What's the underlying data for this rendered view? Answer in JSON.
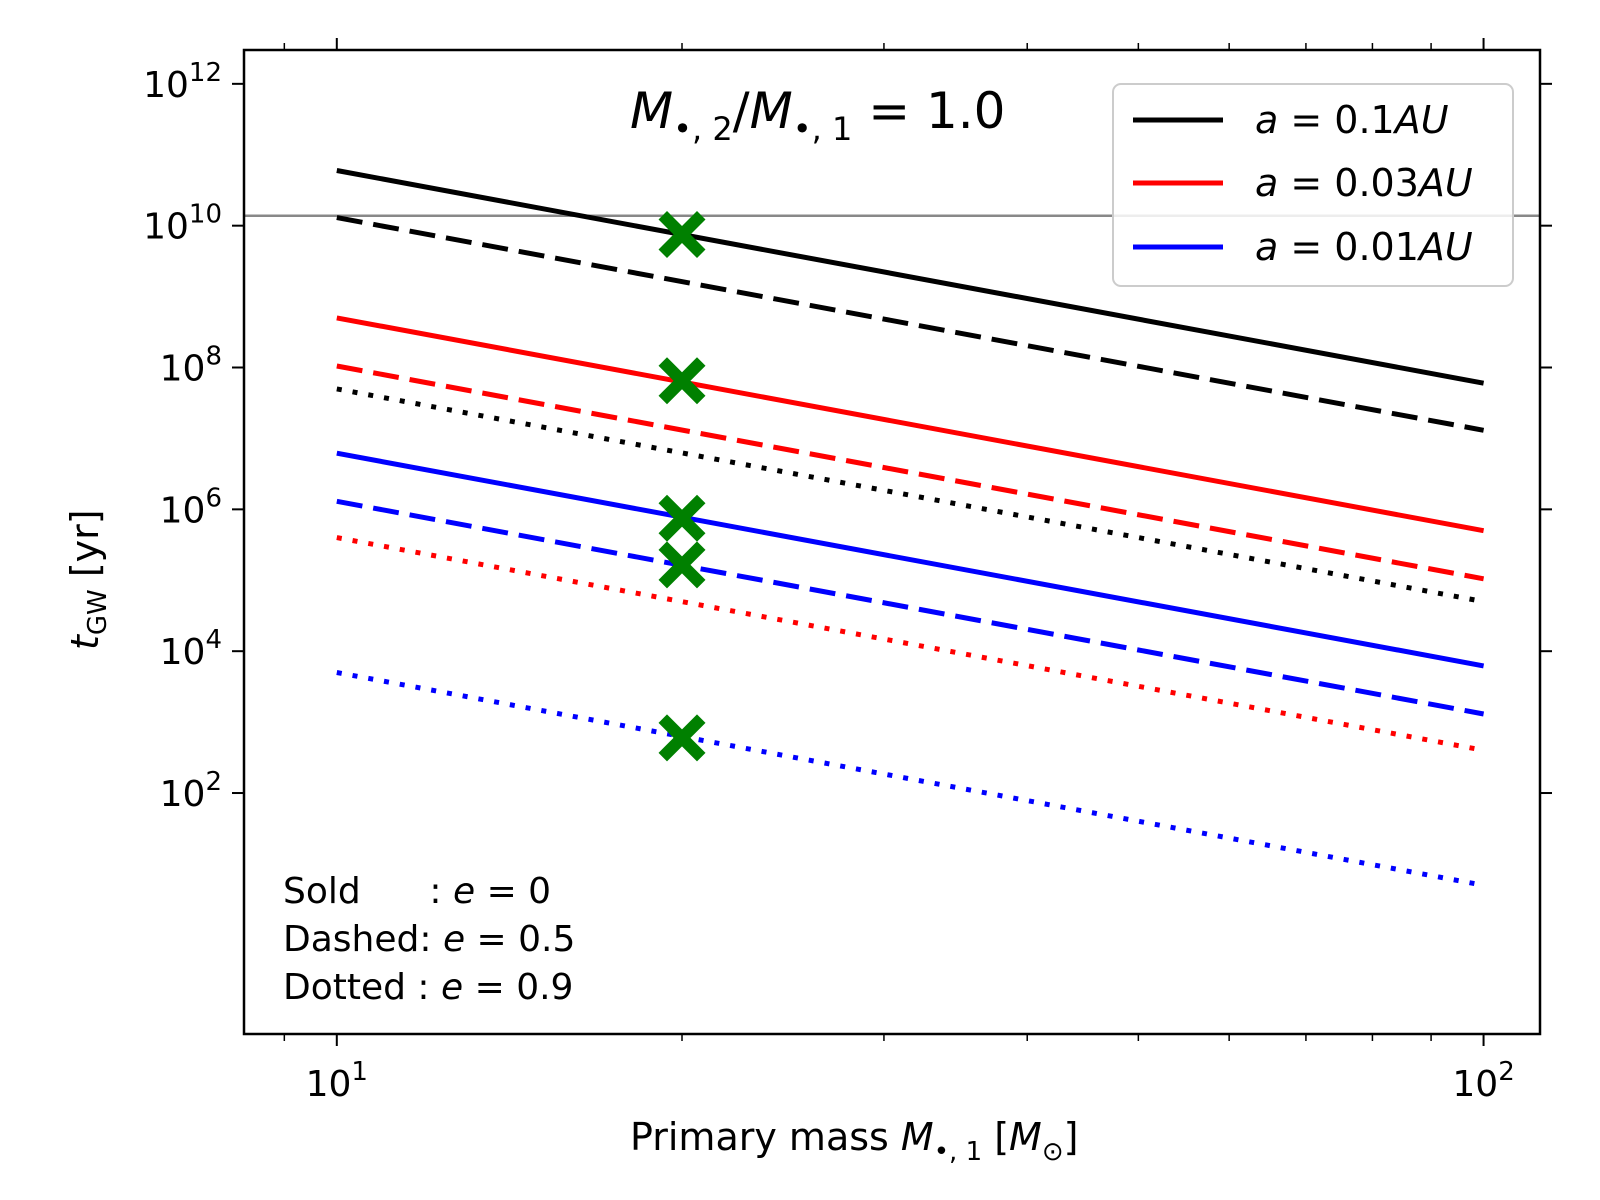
{
  "chart_data": {
    "type": "line",
    "title": {
      "prefix": "M",
      "sub1": "•, 2",
      "slash": "/",
      "prefix2": "M",
      "sub2": "•, 1",
      "suffix": " = 1.0"
    },
    "xlabel": {
      "text": "Primary mass ",
      "sym": "M",
      "sub": "•, 1",
      "unit_open": " [",
      "unit_sym": "M",
      "unit_sub": "⊙",
      "unit_close": "]"
    },
    "ylabel": {
      "sym": "t",
      "sub": "GW",
      "unit": " [yr]"
    },
    "x_scale": "log",
    "y_scale": "log",
    "xlim": [
      8.3,
      112
    ],
    "ylim": [
      0.04,
      3000000000000.0
    ],
    "x_ticks": [
      {
        "value": 10,
        "base": "10",
        "exp": "1"
      },
      {
        "value": 100,
        "base": "10",
        "exp": "2"
      }
    ],
    "y_ticks": [
      {
        "value": 100,
        "base": "10",
        "exp": "2"
      },
      {
        "value": 10000,
        "base": "10",
        "exp": "4"
      },
      {
        "value": 1000000,
        "base": "10",
        "exp": "6"
      },
      {
        "value": 100000000,
        "base": "10",
        "exp": "8"
      },
      {
        "value": 10000000000,
        "base": "10",
        "exp": "10"
      },
      {
        "value": 1000000000000,
        "base": "10",
        "exp": "12"
      }
    ],
    "hline": {
      "y": 13800000000,
      "color": "#888888"
    },
    "series": [
      {
        "name": "a=0.1AU, e=0",
        "color": "#000000",
        "style": "solid",
        "x": [
          10,
          100
        ],
        "y": [
          60000000000.0,
          60000000.0
        ]
      },
      {
        "name": "a=0.1AU, e=0.5",
        "color": "#000000",
        "style": "dashed",
        "x": [
          10,
          100
        ],
        "y": [
          13000000000.0,
          13000000.0
        ]
      },
      {
        "name": "a=0.1AU, e=0.9",
        "color": "#000000",
        "style": "dotted",
        "x": [
          10,
          100
        ],
        "y": [
          50000000.0,
          50000.0
        ]
      },
      {
        "name": "a=0.03AU, e=0",
        "color": "#ff0000",
        "style": "solid",
        "x": [
          10,
          100
        ],
        "y": [
          500000000.0,
          500000.0
        ]
      },
      {
        "name": "a=0.03AU, e=0.5",
        "color": "#ff0000",
        "style": "dashed",
        "x": [
          10,
          100
        ],
        "y": [
          105000000.0,
          105000.0
        ]
      },
      {
        "name": "a=0.03AU, e=0.9",
        "color": "#ff0000",
        "style": "dotted",
        "x": [
          10,
          100
        ],
        "y": [
          400000.0,
          400.0
        ]
      },
      {
        "name": "a=0.01AU, e=0",
        "color": "#0000ff",
        "style": "solid",
        "x": [
          10,
          100
        ],
        "y": [
          6200000.0,
          6200.0
        ]
      },
      {
        "name": "a=0.01AU, e=0.5",
        "color": "#0000ff",
        "style": "dashed",
        "x": [
          10,
          100
        ],
        "y": [
          1300000.0,
          1300.0
        ]
      },
      {
        "name": "a=0.01AU, e=0.9",
        "color": "#0000ff",
        "style": "dotted",
        "x": [
          10,
          100
        ],
        "y": [
          5000.0,
          5
        ]
      }
    ],
    "markers": {
      "color": "#008000",
      "symbol": "X",
      "points": [
        {
          "x": 20,
          "y": 7500000000.0
        },
        {
          "x": 20,
          "y": 65000000.0
        },
        {
          "x": 20,
          "y": 750000.0
        },
        {
          "x": 20,
          "y": 165000.0
        },
        {
          "x": 20,
          "y": 600
        }
      ]
    },
    "legend": {
      "placement": "top-right",
      "entries": [
        {
          "prefix": "a",
          "eq": " = ",
          "num": "0.1",
          "unit": "AU",
          "color": "#000000"
        },
        {
          "prefix": "a",
          "eq": " = ",
          "num": "0.03",
          "unit": "AU",
          "color": "#ff0000"
        },
        {
          "prefix": "a",
          "eq": " = ",
          "num": "0.01",
          "unit": "AU",
          "color": "#0000ff"
        }
      ]
    },
    "annotations": [
      {
        "label": "Sold      : ",
        "sym": "e",
        "value": " = 0"
      },
      {
        "label": "Dashed: ",
        "sym": "e",
        "value": " = 0.5"
      },
      {
        "label": "Dotted : ",
        "sym": "e",
        "value": " = 0.9"
      }
    ]
  }
}
